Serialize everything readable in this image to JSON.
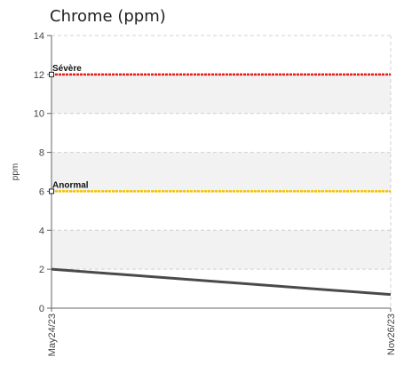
{
  "chart_data": {
    "type": "line",
    "title": "Chrome (ppm)",
    "ylabel": "ppm",
    "xlabel": "",
    "ylim": [
      0,
      14
    ],
    "yticks": [
      0,
      2,
      4,
      6,
      8,
      10,
      12,
      14
    ],
    "x_categories": [
      "May24/23",
      "Nov26/23"
    ],
    "grid": true,
    "series": [
      {
        "values": [
          2.0,
          0.7
        ],
        "color": "#4a4a4a"
      }
    ],
    "thresholds": [
      {
        "label": "Sévère",
        "value": 12,
        "color": "#e0201b"
      },
      {
        "label": "Anormal",
        "value": 6,
        "color": "#f2c200"
      }
    ],
    "band_colors": [
      "#f2f2f2",
      "#ffffff"
    ]
  }
}
